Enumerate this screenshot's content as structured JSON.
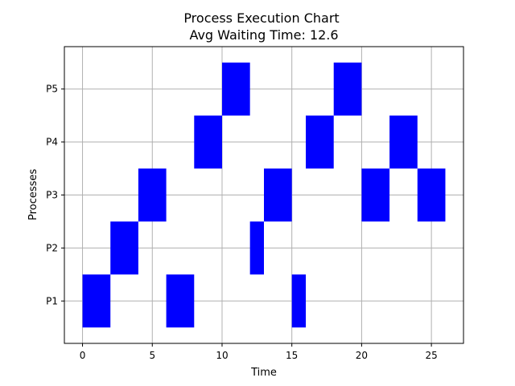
{
  "chart_data": {
    "type": "gantt",
    "title": "Process Execution Chart",
    "subtitle": "Avg Waiting Time: 12.6",
    "xlabel": "Time",
    "ylabel": "Processes",
    "xlim": [
      -1.3,
      27.3
    ],
    "xticks": [
      0,
      5,
      10,
      15,
      20,
      25
    ],
    "categories": [
      "P1",
      "P2",
      "P3",
      "P4",
      "P5"
    ],
    "grid": true,
    "bar_color": "#0000ff",
    "bars": [
      {
        "process": "P1",
        "start": 0,
        "end": 2
      },
      {
        "process": "P2",
        "start": 2,
        "end": 4
      },
      {
        "process": "P3",
        "start": 4,
        "end": 6
      },
      {
        "process": "P1",
        "start": 6,
        "end": 8
      },
      {
        "process": "P4",
        "start": 8,
        "end": 10
      },
      {
        "process": "P5",
        "start": 10,
        "end": 12
      },
      {
        "process": "P2",
        "start": 12,
        "end": 13
      },
      {
        "process": "P3",
        "start": 13,
        "end": 15
      },
      {
        "process": "P1",
        "start": 15,
        "end": 16
      },
      {
        "process": "P4",
        "start": 16,
        "end": 18
      },
      {
        "process": "P5",
        "start": 18,
        "end": 20
      },
      {
        "process": "P3",
        "start": 20,
        "end": 22
      },
      {
        "process": "P4",
        "start": 22,
        "end": 24
      },
      {
        "process": "P3",
        "start": 24,
        "end": 26
      }
    ]
  }
}
